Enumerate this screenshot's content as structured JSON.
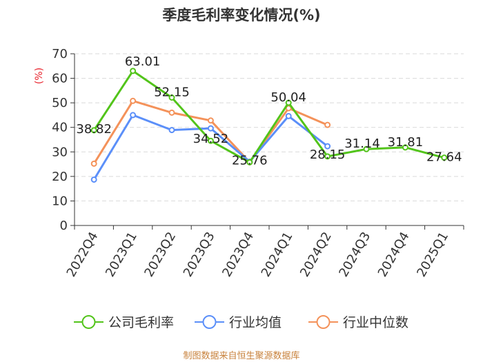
{
  "chart_data": {
    "type": "line",
    "title": "季度毛利率变化情况(%)",
    "ylabel": "(%)",
    "xlabel": "",
    "ylim": [
      0,
      70
    ],
    "yticks": [
      0,
      10,
      20,
      30,
      40,
      50,
      60,
      70
    ],
    "categories": [
      "2022Q4",
      "2023Q1",
      "2023Q2",
      "2023Q3",
      "2023Q4",
      "2024Q1",
      "2024Q2",
      "2024Q3",
      "2024Q4",
      "2025Q1"
    ],
    "grid": true,
    "legend_position": "bottom",
    "series": [
      {
        "name": "公司毛利率",
        "color": "#52c41a",
        "values": [
          38.82,
          63.01,
          52.15,
          34.52,
          25.76,
          50.04,
          28.15,
          31.14,
          31.81,
          27.64
        ],
        "labels": [
          "38.82",
          "63.01",
          "52.15",
          "34.52",
          "25.76",
          "50.04",
          "28.15",
          "31.14",
          "31.81",
          "27.64"
        ]
      },
      {
        "name": "行业均值",
        "color": "#5b8ff9",
        "values": [
          18.7,
          45.0,
          38.9,
          39.6,
          26.0,
          44.6,
          32.3,
          null,
          null,
          null
        ]
      },
      {
        "name": "行业中位数",
        "color": "#f4925a",
        "values": [
          25.2,
          50.8,
          46.0,
          42.8,
          25.8,
          47.8,
          41.0,
          null,
          null,
          null
        ]
      }
    ]
  },
  "source": "制图数据来自恒生聚源数据库"
}
